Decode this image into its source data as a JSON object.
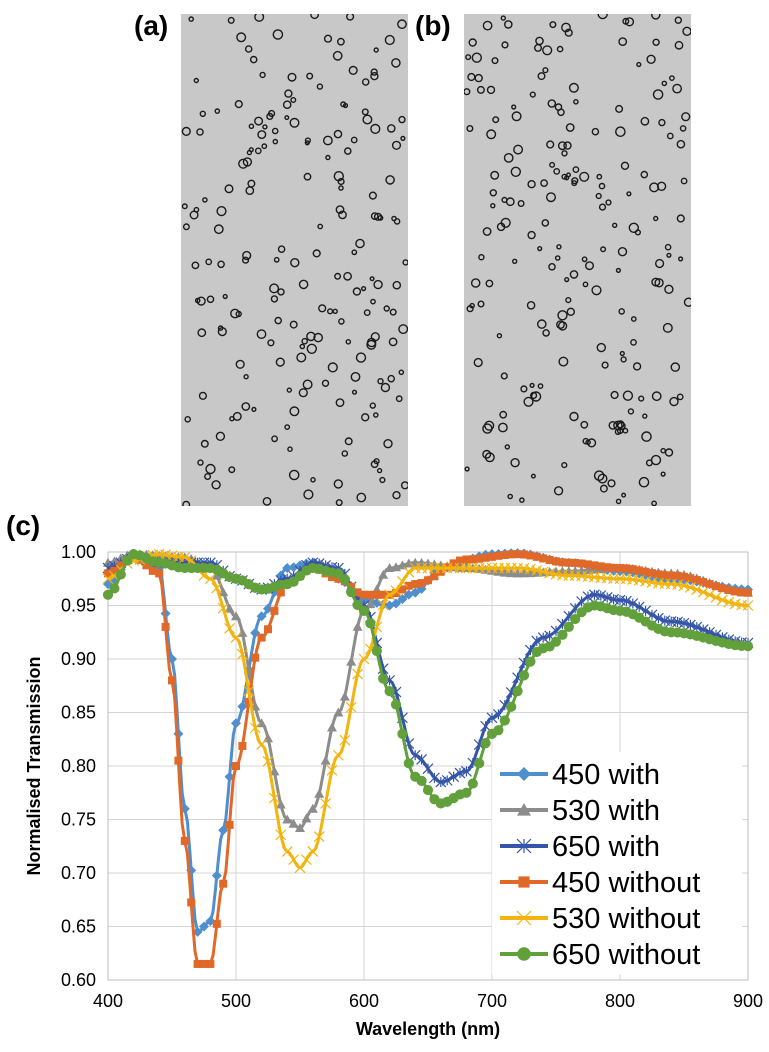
{
  "panels": {
    "a_label": "(a)",
    "b_label": "(b)",
    "c_label": "(c)"
  },
  "colors": {
    "panel_bg": "#c8c8c8",
    "ring": "#1a1a1a",
    "series_450_with": "#4f8fce",
    "series_530_with": "#8c8c8c",
    "series_650_with": "#3556a8",
    "series_450_without": "#e0692a",
    "series_530_without": "#f2b40d",
    "series_650_without": "#62a03b"
  },
  "chart_data": {
    "type": "line",
    "title": "",
    "xlabel": "Wavelength (nm)",
    "ylabel": "Normalised Transmission",
    "xlim": [
      400,
      900
    ],
    "ylim": [
      0.6,
      1.0
    ],
    "xticks": [
      400,
      500,
      600,
      700,
      800,
      900
    ],
    "yticks": [
      0.6,
      0.65,
      0.7,
      0.75,
      0.8,
      0.85,
      0.9,
      0.95,
      1.0
    ],
    "ytick_labels": [
      "0.60",
      "0.65",
      "0.70",
      "0.75",
      "0.80",
      "0.85",
      "0.90",
      "0.95",
      "1.00"
    ],
    "grid": true,
    "legend_position": "bottom-right",
    "series": [
      {
        "name": "450 with",
        "marker": "diamond",
        "color": "#4f8fce",
        "points": [
          [
            400,
            0.97
          ],
          [
            420,
            0.997
          ],
          [
            440,
            0.985
          ],
          [
            450,
            0.9
          ],
          [
            460,
            0.76
          ],
          [
            470,
            0.645
          ],
          [
            480,
            0.655
          ],
          [
            490,
            0.74
          ],
          [
            500,
            0.84
          ],
          [
            520,
            0.94
          ],
          [
            540,
            0.985
          ],
          [
            560,
            0.99
          ],
          [
            580,
            0.975
          ],
          [
            600,
            0.955
          ],
          [
            620,
            0.95
          ],
          [
            640,
            0.962
          ],
          [
            660,
            0.985
          ],
          [
            700,
            0.998
          ],
          [
            720,
            0.999
          ],
          [
            760,
            0.99
          ],
          [
            800,
            0.982
          ],
          [
            840,
            0.975
          ],
          [
            900,
            0.965
          ]
        ]
      },
      {
        "name": "530 with",
        "marker": "triangle",
        "color": "#8c8c8c",
        "points": [
          [
            400,
            0.99
          ],
          [
            420,
            0.998
          ],
          [
            460,
            0.995
          ],
          [
            480,
            0.985
          ],
          [
            500,
            0.94
          ],
          [
            520,
            0.84
          ],
          [
            540,
            0.75
          ],
          [
            550,
            0.742
          ],
          [
            560,
            0.76
          ],
          [
            580,
            0.85
          ],
          [
            600,
            0.945
          ],
          [
            620,
            0.985
          ],
          [
            640,
            0.99
          ],
          [
            680,
            0.985
          ],
          [
            720,
            0.98
          ],
          [
            760,
            0.982
          ],
          [
            800,
            0.985
          ],
          [
            840,
            0.98
          ],
          [
            900,
            0.962
          ]
        ]
      },
      {
        "name": "650 with",
        "marker": "star",
        "color": "#3556a8",
        "points": [
          [
            400,
            0.985
          ],
          [
            420,
            0.995
          ],
          [
            440,
            0.99
          ],
          [
            480,
            0.99
          ],
          [
            500,
            0.975
          ],
          [
            520,
            0.965
          ],
          [
            540,
            0.975
          ],
          [
            560,
            0.99
          ],
          [
            580,
            0.985
          ],
          [
            600,
            0.95
          ],
          [
            620,
            0.88
          ],
          [
            640,
            0.81
          ],
          [
            660,
            0.785
          ],
          [
            680,
            0.795
          ],
          [
            700,
            0.845
          ],
          [
            740,
            0.92
          ],
          [
            780,
            0.96
          ],
          [
            800,
            0.955
          ],
          [
            840,
            0.935
          ],
          [
            900,
            0.915
          ]
        ]
      },
      {
        "name": "450 without",
        "marker": "square",
        "color": "#e0692a",
        "points": [
          [
            400,
            0.98
          ],
          [
            420,
            0.995
          ],
          [
            440,
            0.98
          ],
          [
            450,
            0.88
          ],
          [
            460,
            0.73
          ],
          [
            470,
            0.615
          ],
          [
            480,
            0.615
          ],
          [
            490,
            0.69
          ],
          [
            500,
            0.8
          ],
          [
            520,
            0.92
          ],
          [
            540,
            0.97
          ],
          [
            560,
            0.985
          ],
          [
            580,
            0.975
          ],
          [
            600,
            0.96
          ],
          [
            620,
            0.96
          ],
          [
            640,
            0.97
          ],
          [
            680,
            0.993
          ],
          [
            720,
            0.998
          ],
          [
            760,
            0.99
          ],
          [
            800,
            0.985
          ],
          [
            840,
            0.978
          ],
          [
            900,
            0.962
          ]
        ]
      },
      {
        "name": "530 without",
        "marker": "x",
        "color": "#f2b40d",
        "points": [
          [
            400,
            0.975
          ],
          [
            420,
            0.992
          ],
          [
            440,
            0.998
          ],
          [
            460,
            0.995
          ],
          [
            480,
            0.975
          ],
          [
            500,
            0.92
          ],
          [
            520,
            0.82
          ],
          [
            540,
            0.72
          ],
          [
            550,
            0.705
          ],
          [
            560,
            0.72
          ],
          [
            580,
            0.81
          ],
          [
            600,
            0.9
          ],
          [
            620,
            0.96
          ],
          [
            640,
            0.985
          ],
          [
            680,
            0.985
          ],
          [
            720,
            0.985
          ],
          [
            760,
            0.978
          ],
          [
            800,
            0.975
          ],
          [
            840,
            0.97
          ],
          [
            900,
            0.95
          ]
        ]
      },
      {
        "name": "650 without",
        "marker": "circle",
        "color": "#62a03b",
        "points": [
          [
            400,
            0.96
          ],
          [
            420,
            0.998
          ],
          [
            440,
            0.99
          ],
          [
            460,
            0.985
          ],
          [
            480,
            0.985
          ],
          [
            500,
            0.975
          ],
          [
            520,
            0.965
          ],
          [
            540,
            0.97
          ],
          [
            560,
            0.985
          ],
          [
            580,
            0.98
          ],
          [
            600,
            0.945
          ],
          [
            620,
            0.87
          ],
          [
            640,
            0.79
          ],
          [
            660,
            0.765
          ],
          [
            680,
            0.775
          ],
          [
            700,
            0.83
          ],
          [
            740,
            0.91
          ],
          [
            780,
            0.95
          ],
          [
            800,
            0.945
          ],
          [
            840,
            0.925
          ],
          [
            900,
            0.912
          ]
        ]
      }
    ]
  }
}
